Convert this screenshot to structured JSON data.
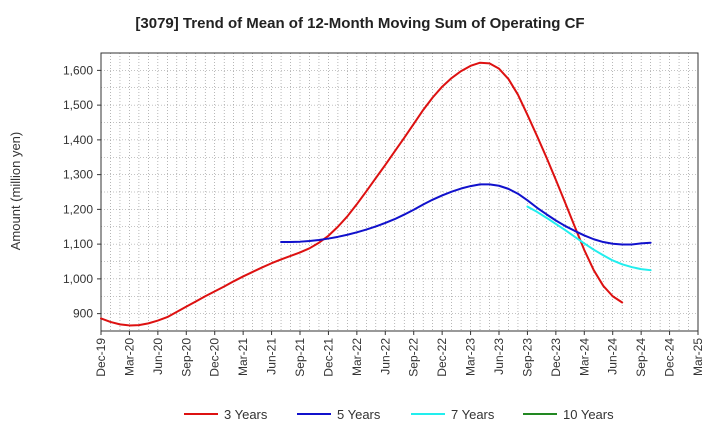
{
  "chart_data": {
    "type": "line",
    "title": "[3079]  Trend of Mean of 12-Month Moving Sum of Operating CF",
    "xlabel": "",
    "ylabel": "Amount (million yen)",
    "ylim": [
      850,
      1650
    ],
    "yticks": [
      900,
      1000,
      1100,
      1200,
      1300,
      1400,
      1500,
      1600
    ],
    "ytick_labels": [
      "900",
      "1,000",
      "1,100",
      "1,200",
      "1,300",
      "1,400",
      "1,500",
      "1,600"
    ],
    "x_start": "Dec-19",
    "x_end": "Mar-25",
    "xtick_labels": [
      "Dec-19",
      "Mar-20",
      "Jun-20",
      "Sep-20",
      "Dec-20",
      "Mar-21",
      "Jun-21",
      "Sep-21",
      "Dec-21",
      "Mar-22",
      "Jun-22",
      "Sep-22",
      "Dec-22",
      "Mar-23",
      "Jun-23",
      "Sep-23",
      "Dec-23",
      "Mar-24",
      "Jun-24",
      "Sep-24",
      "Dec-24",
      "Mar-25"
    ],
    "grid": true,
    "legend_position": "bottom",
    "series": [
      {
        "name": "3 Years",
        "color": "#dd1111",
        "points": [
          [
            0,
            886
          ],
          [
            1,
            876
          ],
          [
            2,
            869
          ],
          [
            3,
            866
          ],
          [
            4,
            867
          ],
          [
            5,
            872
          ],
          [
            6,
            880
          ],
          [
            7,
            890
          ],
          [
            8,
            905
          ],
          [
            9,
            920
          ],
          [
            10,
            935
          ],
          [
            11,
            950
          ],
          [
            12,
            964
          ],
          [
            13,
            978
          ],
          [
            14,
            993
          ],
          [
            15,
            1007
          ],
          [
            16,
            1020
          ],
          [
            17,
            1033
          ],
          [
            18,
            1045
          ],
          [
            19,
            1056
          ],
          [
            20,
            1066
          ],
          [
            21,
            1076
          ],
          [
            22,
            1088
          ],
          [
            23,
            1104
          ],
          [
            24,
            1124
          ],
          [
            25,
            1150
          ],
          [
            26,
            1180
          ],
          [
            27,
            1215
          ],
          [
            28,
            1252
          ],
          [
            29,
            1290
          ],
          [
            30,
            1328
          ],
          [
            31,
            1367
          ],
          [
            32,
            1406
          ],
          [
            33,
            1446
          ],
          [
            34,
            1486
          ],
          [
            35,
            1522
          ],
          [
            36,
            1553
          ],
          [
            37,
            1578
          ],
          [
            38,
            1598
          ],
          [
            39,
            1613
          ],
          [
            40,
            1622
          ],
          [
            41,
            1620
          ],
          [
            42,
            1605
          ],
          [
            43,
            1575
          ],
          [
            44,
            1530
          ],
          [
            45,
            1472
          ],
          [
            46,
            1412
          ],
          [
            47,
            1350
          ],
          [
            48,
            1285
          ],
          [
            49,
            1218
          ],
          [
            50,
            1150
          ],
          [
            51,
            1083
          ],
          [
            52,
            1025
          ],
          [
            53,
            980
          ],
          [
            54,
            950
          ],
          [
            55,
            932
          ]
        ]
      },
      {
        "name": "5 Years",
        "color": "#1111cc",
        "points": [
          [
            19,
            1106
          ],
          [
            20,
            1106
          ],
          [
            21,
            1107
          ],
          [
            22,
            1109
          ],
          [
            23,
            1112
          ],
          [
            24,
            1116
          ],
          [
            25,
            1121
          ],
          [
            26,
            1127
          ],
          [
            27,
            1134
          ],
          [
            28,
            1142
          ],
          [
            29,
            1151
          ],
          [
            30,
            1161
          ],
          [
            31,
            1172
          ],
          [
            32,
            1185
          ],
          [
            33,
            1199
          ],
          [
            34,
            1214
          ],
          [
            35,
            1228
          ],
          [
            36,
            1240
          ],
          [
            37,
            1251
          ],
          [
            38,
            1260
          ],
          [
            39,
            1267
          ],
          [
            40,
            1272
          ],
          [
            41,
            1272
          ],
          [
            42,
            1268
          ],
          [
            43,
            1259
          ],
          [
            44,
            1245
          ],
          [
            45,
            1226
          ],
          [
            46,
            1205
          ],
          [
            47,
            1186
          ],
          [
            48,
            1168
          ],
          [
            49,
            1152
          ],
          [
            50,
            1138
          ],
          [
            51,
            1125
          ],
          [
            52,
            1114
          ],
          [
            53,
            1106
          ],
          [
            54,
            1101
          ],
          [
            55,
            1099
          ],
          [
            56,
            1099
          ],
          [
            57,
            1102
          ],
          [
            58,
            1104
          ]
        ]
      },
      {
        "name": "7 Years",
        "color": "#22eeee",
        "points": [
          [
            45,
            1208
          ],
          [
            46,
            1193
          ],
          [
            47,
            1176
          ],
          [
            48,
            1158
          ],
          [
            49,
            1140
          ],
          [
            50,
            1121
          ],
          [
            51,
            1102
          ],
          [
            52,
            1084
          ],
          [
            53,
            1068
          ],
          [
            54,
            1053
          ],
          [
            55,
            1042
          ],
          [
            56,
            1034
          ],
          [
            57,
            1028
          ],
          [
            58,
            1025
          ]
        ]
      },
      {
        "name": "10 Years",
        "color": "#228822",
        "points": []
      }
    ]
  }
}
